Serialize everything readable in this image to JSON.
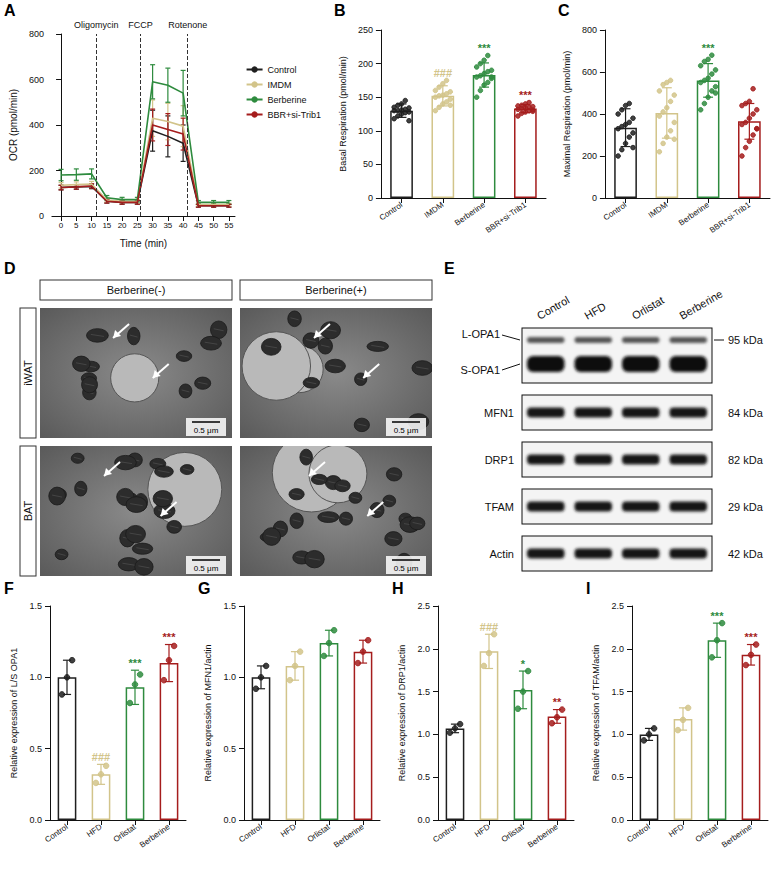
{
  "chart_data": [
    {
      "panel": "A",
      "type": "line",
      "xlabel": "Time (min)",
      "ylabel": "OCR (pmol/min)",
      "x": [
        0,
        5,
        10,
        15,
        20,
        25,
        30,
        35,
        40,
        45,
        50,
        55
      ],
      "xlim": [
        -3,
        57
      ],
      "xticks": [
        0,
        5,
        10,
        15,
        20,
        25,
        30,
        35,
        40,
        45,
        50,
        55
      ],
      "ylim": [
        0,
        800
      ],
      "yticks": [
        0,
        200,
        400,
        600,
        800
      ],
      "grid": false,
      "legend": "right",
      "marker": "none",
      "series": [
        {
          "name": "Control",
          "color": "#1f1f1f",
          "values": [
            125,
            128,
            130,
            65,
            60,
            60,
            375,
            350,
            320,
            45,
            45,
            45
          ],
          "errors": [
            10,
            10,
            10,
            8,
            8,
            8,
            90,
            90,
            80,
            6,
            6,
            6
          ]
        },
        {
          "name": "IMDM",
          "color": "#d2c48a",
          "values": [
            135,
            138,
            140,
            70,
            65,
            65,
            430,
            415,
            395,
            50,
            50,
            50
          ],
          "errors": [
            12,
            12,
            12,
            8,
            8,
            8,
            80,
            80,
            90,
            6,
            6,
            6
          ]
        },
        {
          "name": "Berberine",
          "color": "#2e8b3e",
          "values": [
            180,
            182,
            185,
            80,
            72,
            72,
            590,
            575,
            540,
            60,
            60,
            60
          ],
          "errors": [
            25,
            25,
            22,
            10,
            10,
            10,
            75,
            75,
            100,
            8,
            8,
            8
          ]
        },
        {
          "name": "BBR+si-Trib1",
          "color": "#a51d1d",
          "values": [
            125,
            128,
            132,
            65,
            60,
            60,
            400,
            380,
            360,
            45,
            45,
            45
          ],
          "errors": [
            10,
            10,
            10,
            8,
            8,
            8,
            70,
            70,
            70,
            6,
            6,
            6
          ]
        }
      ],
      "annotations": [
        {
          "x": 11.5,
          "label": "Oligomycin"
        },
        {
          "x": 26,
          "label": "FCCP"
        },
        {
          "x": 41.5,
          "label": "Rotenone"
        }
      ]
    },
    {
      "panel": "B",
      "type": "bar",
      "ylabel": "Basal Respiration (pmol/min)",
      "categories": [
        "Control",
        "IMDM",
        "Berberine",
        "BBR+si-Trib1"
      ],
      "colors": [
        "#1f1f1f",
        "#d2c48a",
        "#2e8b3e",
        "#a51d1d"
      ],
      "values": [
        130,
        152,
        183,
        133
      ],
      "errors": [
        10,
        15,
        18,
        6
      ],
      "points": [
        [
          118,
          122,
          125,
          127,
          128,
          130,
          130,
          131,
          132,
          134,
          135,
          138,
          140,
          145,
          115
        ],
        [
          130,
          135,
          140,
          143,
          147,
          150,
          152,
          153,
          155,
          158,
          160,
          165,
          170,
          175,
          138
        ],
        [
          150,
          160,
          168,
          172,
          178,
          180,
          182,
          185,
          188,
          190,
          195,
          200,
          205,
          212,
          180
        ],
        [
          122,
          126,
          128,
          130,
          131,
          132,
          133,
          134,
          135,
          136,
          137,
          138,
          140,
          142,
          129
        ]
      ],
      "ylim": [
        0,
        250
      ],
      "yticks": [
        0,
        50,
        100,
        150,
        200,
        250
      ],
      "grid": false,
      "annotations": [
        {
          "category": "IMDM",
          "label": "###"
        },
        {
          "category": "Berberine",
          "label": "***"
        },
        {
          "category": "BBR+si-Trib1",
          "label": "***"
        }
      ]
    },
    {
      "panel": "C",
      "type": "bar",
      "ylabel": "Maximal Respiration (pmol/min)",
      "categories": [
        "Control",
        "IMDM",
        "Berberine",
        "BBR+si-Trib1"
      ],
      "colors": [
        "#1f1f1f",
        "#d2c48a",
        "#2e8b3e",
        "#a51d1d"
      ],
      "values": [
        335,
        405,
        560,
        365
      ],
      "errors": [
        90,
        120,
        80,
        85
      ],
      "points": [
        [
          200,
          230,
          260,
          290,
          310,
          330,
          340,
          350,
          360,
          380,
          400,
          420,
          440,
          450,
          240
        ],
        [
          220,
          260,
          290,
          320,
          360,
          390,
          410,
          430,
          460,
          490,
          510,
          540,
          550,
          560,
          280
        ],
        [
          420,
          450,
          480,
          510,
          530,
          550,
          560,
          570,
          590,
          610,
          630,
          650,
          660,
          680,
          500
        ],
        [
          200,
          240,
          270,
          300,
          330,
          350,
          360,
          380,
          400,
          420,
          440,
          450,
          460,
          520,
          330
        ]
      ],
      "ylim": [
        0,
        800
      ],
      "yticks": [
        0,
        200,
        400,
        600,
        800
      ],
      "grid": false,
      "annotations": [
        {
          "category": "Berberine",
          "label": "***"
        }
      ]
    },
    {
      "panel": "F",
      "type": "bar",
      "ylabel": "Relative expression of L/S OPA1",
      "categories": [
        "Control",
        "HFD",
        "Orlistat",
        "Berberine"
      ],
      "colors": [
        "#1f1f1f",
        "#d2c48a",
        "#2e8b3e",
        "#a51d1d"
      ],
      "values": [
        1.0,
        0.32,
        0.93,
        1.1
      ],
      "errors": [
        0.12,
        0.07,
        0.12,
        0.13
      ],
      "points": [
        [
          0.88,
          1.0,
          1.12
        ],
        [
          0.26,
          0.32,
          0.38
        ],
        [
          0.82,
          0.95,
          1.02
        ],
        [
          0.98,
          1.12,
          1.22
        ]
      ],
      "ylim": [
        0,
        1.5
      ],
      "yticks": [
        {
          "value": 0,
          "label": "0.0"
        },
        0.5,
        {
          "value": 1,
          "label": "1.0"
        },
        1.5
      ],
      "grid": false,
      "annotations": [
        {
          "category": "HFD",
          "label": "###"
        },
        {
          "category": "Orlistat",
          "label": "***"
        },
        {
          "category": "Berberine",
          "label": "***"
        }
      ]
    },
    {
      "panel": "G",
      "type": "bar",
      "ylabel": "Relative expression of MFN1/actin",
      "categories": [
        "Control",
        "HFD",
        "Orlistat",
        "Berberine"
      ],
      "colors": [
        "#1f1f1f",
        "#d2c48a",
        "#2e8b3e",
        "#a51d1d"
      ],
      "values": [
        1.0,
        1.08,
        1.24,
        1.18
      ],
      "errors": [
        0.08,
        0.1,
        0.09,
        0.08
      ],
      "points": [
        [
          0.92,
          1.0,
          1.08
        ],
        [
          0.98,
          1.08,
          1.18
        ],
        [
          1.15,
          1.24,
          1.33
        ],
        [
          1.1,
          1.18,
          1.26
        ]
      ],
      "ylim": [
        0,
        1.5
      ],
      "yticks": [
        {
          "value": 0,
          "label": "0.0"
        },
        0.5,
        {
          "value": 1,
          "label": "1.0"
        },
        1.5
      ],
      "grid": false,
      "annotations": []
    },
    {
      "panel": "H",
      "type": "bar",
      "ylabel": "Relative expression of DRP1/actin",
      "categories": [
        "Control",
        "HFD",
        "Orlistat",
        "Berberine"
      ],
      "colors": [
        "#1f1f1f",
        "#d2c48a",
        "#2e8b3e",
        "#a51d1d"
      ],
      "values": [
        1.07,
        1.97,
        1.52,
        1.21
      ],
      "errors": [
        0.05,
        0.2,
        0.22,
        0.08
      ],
      "points": [
        [
          1.02,
          1.07,
          1.12
        ],
        [
          1.8,
          1.95,
          2.17
        ],
        [
          1.3,
          1.5,
          1.74
        ],
        [
          1.13,
          1.2,
          1.29
        ]
      ],
      "ylim": [
        0,
        2.5
      ],
      "yticks": [
        {
          "value": 0,
          "label": "0.0"
        },
        0.5,
        {
          "value": 1,
          "label": "1.0"
        },
        1.5,
        {
          "value": 2,
          "label": "2.0"
        },
        2.5
      ],
      "grid": false,
      "annotations": [
        {
          "category": "HFD",
          "label": "###"
        },
        {
          "category": "Orlistat",
          "label": "*"
        },
        {
          "category": "Berberine",
          "label": "**"
        }
      ]
    },
    {
      "panel": "I",
      "type": "bar",
      "ylabel": "Relative expression of TFAM/actin",
      "categories": [
        "Control",
        "HFD",
        "Orlistat",
        "Berberine"
      ],
      "colors": [
        "#1f1f1f",
        "#d2c48a",
        "#2e8b3e",
        "#a51d1d"
      ],
      "values": [
        1.0,
        1.18,
        2.1,
        1.93
      ],
      "errors": [
        0.07,
        0.13,
        0.2,
        0.12
      ],
      "points": [
        [
          0.93,
          1.0,
          1.07
        ],
        [
          1.05,
          1.17,
          1.31
        ],
        [
          1.9,
          2.1,
          2.3
        ],
        [
          1.81,
          1.93,
          2.05
        ]
      ],
      "ylim": [
        0,
        2.5
      ],
      "yticks": [
        {
          "value": 0,
          "label": "0.0"
        },
        0.5,
        {
          "value": 1,
          "label": "1.0"
        },
        1.5,
        {
          "value": 2,
          "label": "2.0"
        },
        2.5
      ],
      "grid": false,
      "annotations": [
        {
          "category": "Orlistat",
          "label": "***"
        },
        {
          "category": "Berberine",
          "label": "***"
        }
      ]
    }
  ],
  "micrographs": {
    "panel": "D",
    "columns": [
      "Berberine(-)",
      "Berberine(+)"
    ],
    "rows": [
      "iWAT",
      "BAT"
    ],
    "scale_bar": "0.5 μm"
  },
  "blot": {
    "panel": "E",
    "lanes": [
      "Control",
      "HFD",
      "Orlistat",
      "Berberine"
    ],
    "rows": [
      {
        "labels": [
          "L-OPA1",
          "S-OPA1"
        ],
        "size": "95 kDa"
      },
      {
        "labels": [
          "MFN1"
        ],
        "size": "84 kDa"
      },
      {
        "labels": [
          "DRP1"
        ],
        "size": "82 kDa"
      },
      {
        "labels": [
          "TFAM"
        ],
        "size": "29 kDa"
      },
      {
        "labels": [
          "Actin"
        ],
        "size": "42 kDa"
      }
    ]
  }
}
